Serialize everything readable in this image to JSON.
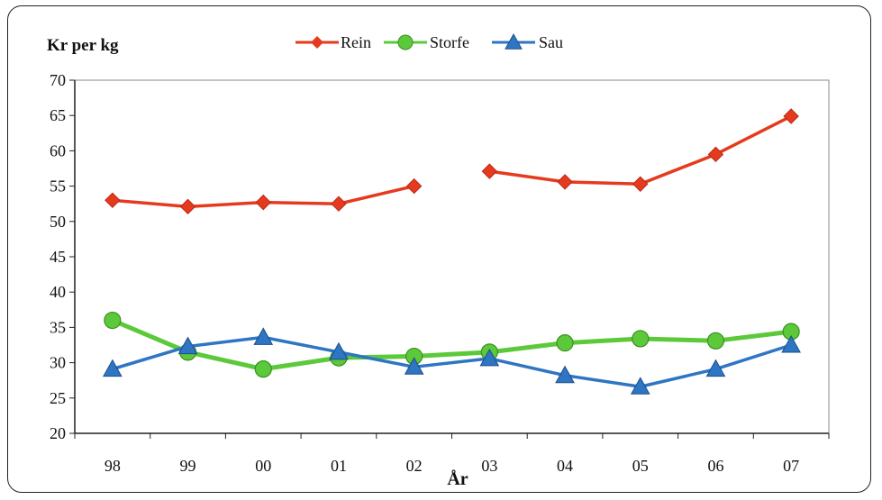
{
  "chart_data": {
    "type": "line",
    "ylabel": "Kr per kg",
    "xlabel": "År",
    "categories": [
      "98",
      "99",
      "00",
      "01",
      "02",
      "03",
      "04",
      "05",
      "06",
      "07"
    ],
    "ylim": [
      20,
      70
    ],
    "yticks": [
      20,
      25,
      30,
      35,
      40,
      45,
      50,
      55,
      60,
      65,
      70
    ],
    "grid": false,
    "legend": "top-center",
    "series": [
      {
        "name": "Rein",
        "color": "#e63a1f",
        "marker": "diamond",
        "values": [
          53.0,
          52.1,
          52.7,
          52.5,
          55.0,
          null,
          55.6,
          55.3,
          59.5,
          64.9
        ],
        "segment_break_value_03": 57.1
      },
      {
        "name": "Storfe",
        "color": "#5cc93a",
        "marker": "circle",
        "values": [
          36.0,
          31.5,
          29.1,
          30.7,
          30.9,
          31.5,
          32.8,
          33.4,
          33.1,
          34.4
        ]
      },
      {
        "name": "Sau",
        "color": "#2e75c4",
        "marker": "triangle",
        "values": [
          29.1,
          32.3,
          33.6,
          31.5,
          29.4,
          30.6,
          28.2,
          26.6,
          29.1,
          32.5
        ]
      }
    ]
  }
}
